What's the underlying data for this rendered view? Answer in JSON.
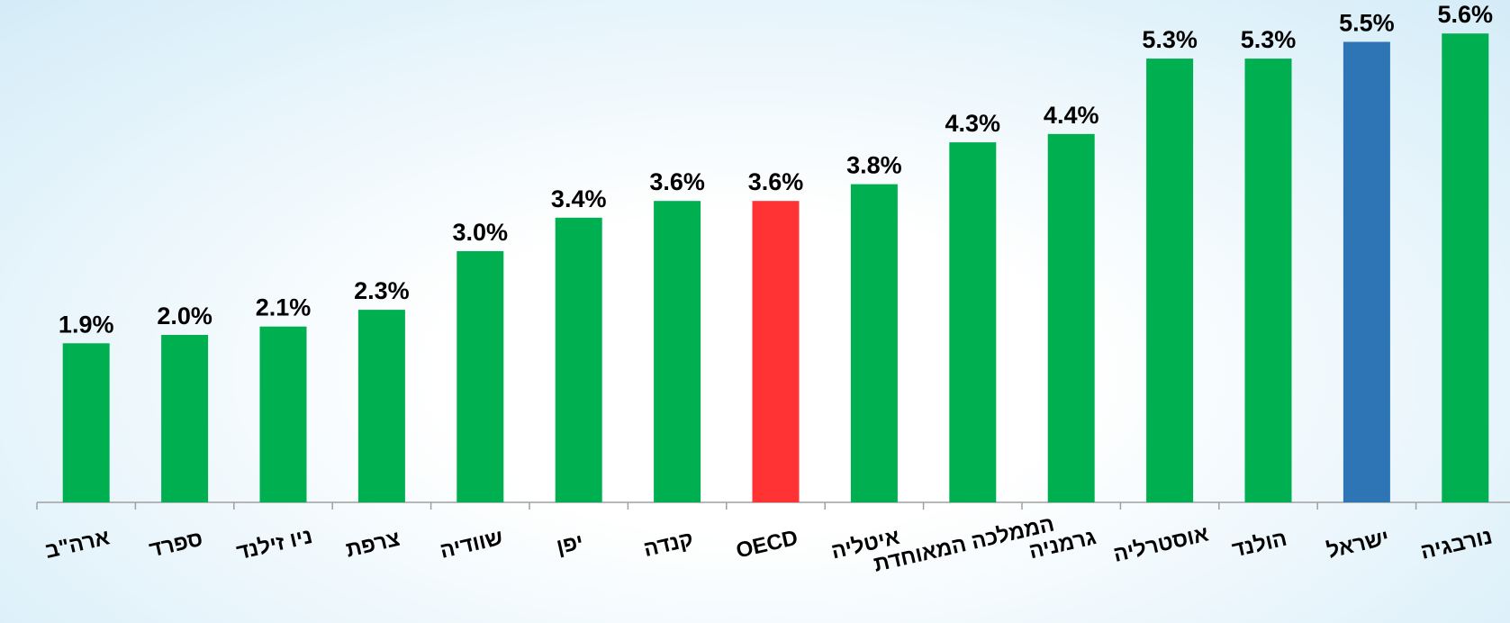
{
  "chart_data": {
    "type": "bar",
    "categories": [
      "ארה\"ב",
      "ספרד",
      "ניו זילנד",
      "צרפת",
      "שוודיה",
      "יפן",
      "קנדה",
      "OECD",
      "איטליה",
      "הממלכה המאוחדת",
      "גרמניה",
      "אוסטרליה",
      "הולנד",
      "ישראל",
      "נורבגיה"
    ],
    "values": [
      1.9,
      2.0,
      2.1,
      2.3,
      3.0,
      3.4,
      3.6,
      3.6,
      3.8,
      4.3,
      4.4,
      5.3,
      5.3,
      5.5,
      5.6
    ],
    "value_labels": [
      "1.9%",
      "2.0%",
      "2.1%",
      "2.3%",
      "3.0%",
      "3.4%",
      "3.6%",
      "3.6%",
      "3.8%",
      "4.3%",
      "4.4%",
      "5.3%",
      "5.3%",
      "5.5%",
      "5.6%"
    ],
    "colors": [
      "#00b050",
      "#00b050",
      "#00b050",
      "#00b050",
      "#00b050",
      "#00b050",
      "#00b050",
      "#ff3333",
      "#00b050",
      "#00b050",
      "#00b050",
      "#00b050",
      "#00b050",
      "#2e75b6",
      "#00b050"
    ],
    "ylim": [
      0,
      6
    ]
  }
}
